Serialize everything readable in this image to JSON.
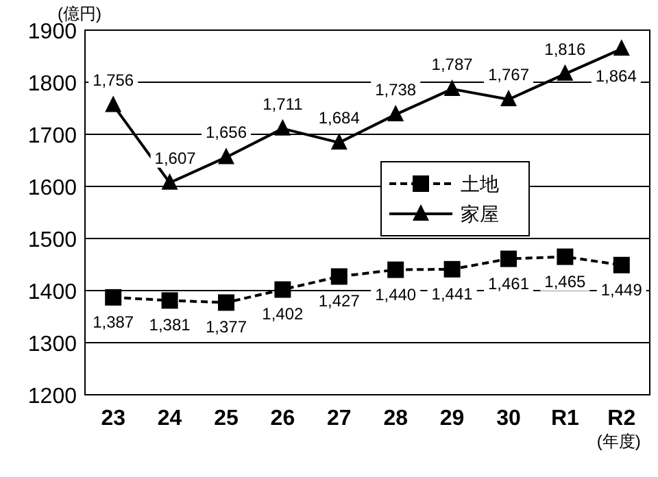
{
  "chart_data": {
    "type": "line",
    "ylabel": "(億円)",
    "xlabel": "(年度)",
    "categories": [
      "23",
      "24",
      "25",
      "26",
      "27",
      "28",
      "29",
      "30",
      "R1",
      "R2"
    ],
    "series": [
      {
        "name": "土地",
        "color": "#000000",
        "marker": "square",
        "line_style": "dashed",
        "values": [
          1387,
          1381,
          1377,
          1402,
          1427,
          1440,
          1441,
          1461,
          1465,
          1449
        ],
        "value_labels": [
          "1,387",
          "1,381",
          "1,377",
          "1,402",
          "1,427",
          "1,440",
          "1,441",
          "1,461",
          "1,465",
          "1,449"
        ]
      },
      {
        "name": "家屋",
        "color": "#000000",
        "marker": "triangle",
        "line_style": "solid",
        "values": [
          1756,
          1607,
          1656,
          1711,
          1684,
          1738,
          1787,
          1767,
          1816,
          1864
        ],
        "value_labels": [
          "1,756",
          "1,607",
          "1,656",
          "1,711",
          "1,684",
          "1,738",
          "1,787",
          "1,767",
          "1,816",
          "1,864"
        ]
      }
    ],
    "ylim": [
      1200,
      1900
    ],
    "yticks": [
      1200,
      1300,
      1400,
      1500,
      1600,
      1700,
      1800,
      1900
    ],
    "grid": "y",
    "legend": "right"
  }
}
